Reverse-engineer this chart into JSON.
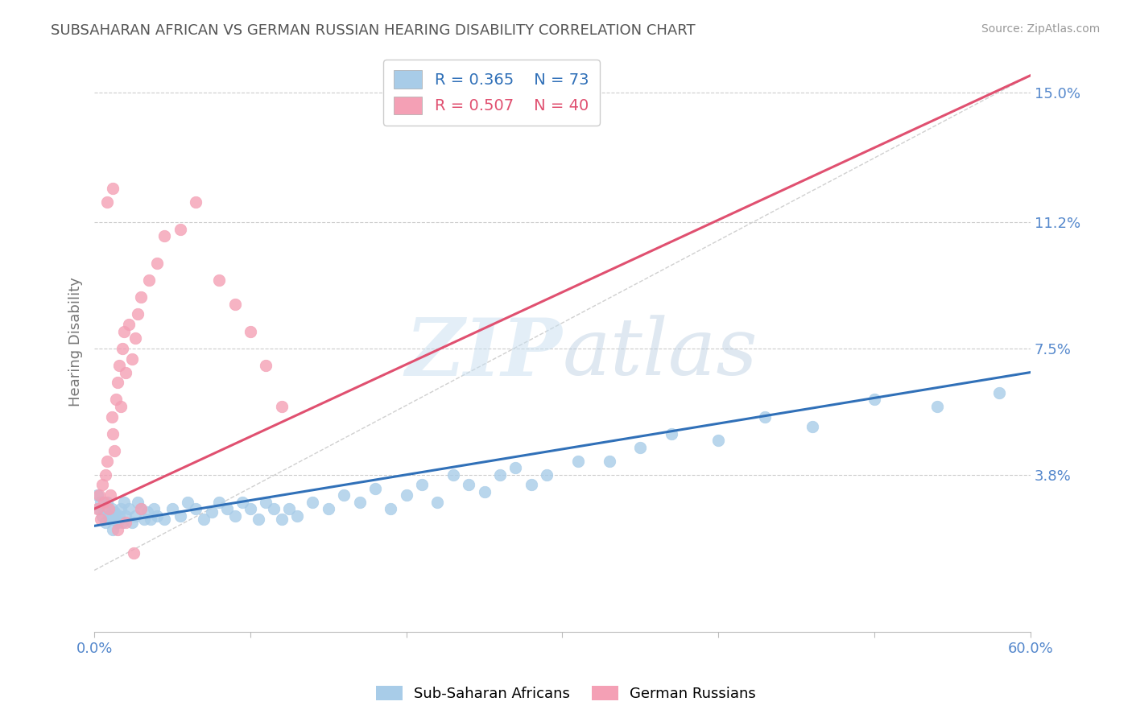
{
  "title": "SUBSAHARAN AFRICAN VS GERMAN RUSSIAN HEARING DISABILITY CORRELATION CHART",
  "source": "Source: ZipAtlas.com",
  "ylabel": "Hearing Disability",
  "xlim": [
    0.0,
    0.6
  ],
  "ylim": [
    -0.008,
    0.162
  ],
  "yticks": [
    0.038,
    0.075,
    0.112,
    0.15
  ],
  "ytick_labels": [
    "3.8%",
    "7.5%",
    "11.2%",
    "15.0%"
  ],
  "xticks": [
    0.0,
    0.1,
    0.2,
    0.3,
    0.4,
    0.5,
    0.6
  ],
  "xtick_labels": [
    "0.0%",
    "",
    "",
    "",
    "",
    "",
    "60.0%"
  ],
  "legend_r1": "R = 0.365",
  "legend_n1": "N = 73",
  "legend_r2": "R = 0.507",
  "legend_n2": "N = 40",
  "blue_color": "#a8cce8",
  "pink_color": "#f4a0b5",
  "blue_line_color": "#3070b8",
  "pink_line_color": "#e05070",
  "watermark_color": "#ddeeff",
  "background_color": "#ffffff",
  "grid_color": "#cccccc",
  "title_color": "#555555",
  "axis_label_color": "#5588cc",
  "blue_scatter_x": [
    0.002,
    0.003,
    0.004,
    0.005,
    0.006,
    0.007,
    0.008,
    0.009,
    0.01,
    0.011,
    0.012,
    0.013,
    0.014,
    0.015,
    0.016,
    0.017,
    0.018,
    0.019,
    0.02,
    0.022,
    0.024,
    0.026,
    0.028,
    0.03,
    0.032,
    0.034,
    0.036,
    0.038,
    0.04,
    0.045,
    0.05,
    0.055,
    0.06,
    0.065,
    0.07,
    0.075,
    0.08,
    0.085,
    0.09,
    0.095,
    0.1,
    0.105,
    0.11,
    0.115,
    0.12,
    0.125,
    0.13,
    0.14,
    0.15,
    0.16,
    0.17,
    0.18,
    0.19,
    0.2,
    0.21,
    0.22,
    0.23,
    0.24,
    0.25,
    0.26,
    0.27,
    0.28,
    0.29,
    0.31,
    0.33,
    0.35,
    0.37,
    0.4,
    0.43,
    0.46,
    0.5,
    0.54,
    0.58
  ],
  "blue_scatter_y": [
    0.032,
    0.028,
    0.03,
    0.026,
    0.028,
    0.024,
    0.03,
    0.026,
    0.025,
    0.028,
    0.022,
    0.027,
    0.025,
    0.024,
    0.026,
    0.028,
    0.024,
    0.03,
    0.026,
    0.028,
    0.024,
    0.026,
    0.03,
    0.028,
    0.025,
    0.027,
    0.025,
    0.028,
    0.026,
    0.025,
    0.028,
    0.026,
    0.03,
    0.028,
    0.025,
    0.027,
    0.03,
    0.028,
    0.026,
    0.03,
    0.028,
    0.025,
    0.03,
    0.028,
    0.025,
    0.028,
    0.026,
    0.03,
    0.028,
    0.032,
    0.03,
    0.034,
    0.028,
    0.032,
    0.035,
    0.03,
    0.038,
    0.035,
    0.033,
    0.038,
    0.04,
    0.035,
    0.038,
    0.042,
    0.042,
    0.046,
    0.05,
    0.048,
    0.055,
    0.052,
    0.06,
    0.058,
    0.062
  ],
  "pink_scatter_x": [
    0.002,
    0.003,
    0.004,
    0.005,
    0.006,
    0.007,
    0.008,
    0.009,
    0.01,
    0.011,
    0.012,
    0.013,
    0.014,
    0.015,
    0.016,
    0.017,
    0.018,
    0.019,
    0.02,
    0.022,
    0.024,
    0.026,
    0.028,
    0.03,
    0.035,
    0.04,
    0.045,
    0.055,
    0.065,
    0.08,
    0.09,
    0.1,
    0.11,
    0.12,
    0.025,
    0.015,
    0.02,
    0.03,
    0.008,
    0.012
  ],
  "pink_scatter_y": [
    0.028,
    0.032,
    0.025,
    0.035,
    0.03,
    0.038,
    0.042,
    0.028,
    0.032,
    0.055,
    0.05,
    0.045,
    0.06,
    0.065,
    0.07,
    0.058,
    0.075,
    0.08,
    0.068,
    0.082,
    0.072,
    0.078,
    0.085,
    0.09,
    0.095,
    0.1,
    0.108,
    0.11,
    0.118,
    0.095,
    0.088,
    0.08,
    0.07,
    0.058,
    0.015,
    0.022,
    0.024,
    0.028,
    0.118,
    0.122
  ],
  "blue_trend_x": [
    0.0,
    0.6
  ],
  "blue_trend_y": [
    0.023,
    0.068
  ],
  "pink_trend_x": [
    0.0,
    0.6
  ],
  "pink_trend_y": [
    0.028,
    0.155
  ]
}
